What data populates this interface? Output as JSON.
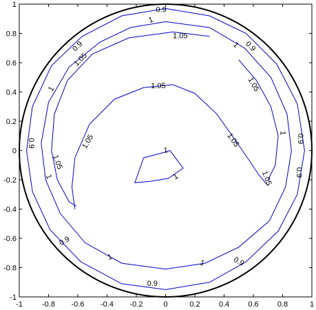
{
  "chart_data": {
    "type": "contour",
    "title": "",
    "xlabel": "",
    "ylabel": "",
    "xlim": [
      -1,
      1
    ],
    "ylim": [
      -1,
      1
    ],
    "grid": false,
    "x_ticks": [
      "-1",
      "-0.8",
      "-0.6",
      "-0.4",
      "-0.2",
      "0",
      "0.2",
      "0.4",
      "0.6",
      "0.8",
      "1"
    ],
    "y_ticks": [
      "1",
      "0.8",
      "0.6",
      "0.4",
      "0.2",
      "0",
      "-0.2",
      "-0.4",
      "-0.6",
      "-0.8",
      "-1"
    ],
    "colors": {
      "contour": "#0000cc",
      "boundary": "#000000",
      "axes": "#000000"
    },
    "boundary": {
      "shape": "circle",
      "center": [
        0,
        0
      ],
      "radius": 1
    },
    "contours": [
      {
        "level": "0.9",
        "points": [
          [
            0,
            0.97
          ],
          [
            0.3,
            0.92
          ],
          [
            0.55,
            0.8
          ],
          [
            0.76,
            0.59
          ],
          [
            0.9,
            0.32
          ],
          [
            0.95,
            0
          ],
          [
            0.9,
            -0.3
          ],
          [
            0.77,
            -0.55
          ],
          [
            0.55,
            -0.76
          ],
          [
            0.3,
            -0.9
          ],
          [
            0,
            -0.95
          ],
          [
            -0.3,
            -0.91
          ],
          [
            -0.58,
            -0.76
          ],
          [
            -0.79,
            -0.54
          ],
          [
            -0.91,
            -0.28
          ],
          [
            -0.95,
            0
          ],
          [
            -0.91,
            0.3
          ],
          [
            -0.78,
            0.58
          ],
          [
            -0.57,
            0.78
          ],
          [
            -0.3,
            0.92
          ],
          [
            0,
            0.97
          ]
        ],
        "labels": [
          {
            "x": -0.03,
            "y": 0.96,
            "angle": 0
          },
          {
            "x": -0.6,
            "y": 0.71,
            "angle": -45
          },
          {
            "x": 0.58,
            "y": 0.71,
            "angle": 45
          },
          {
            "x": -0.92,
            "y": 0.05,
            "angle": 90
          },
          {
            "x": 0.92,
            "y": 0.08,
            "angle": 90
          },
          {
            "x": 0.91,
            "y": -0.15,
            "angle": 90
          },
          {
            "x": -0.69,
            "y": -0.62,
            "angle": -30
          },
          {
            "x": 0.5,
            "y": -0.76,
            "angle": 30
          },
          {
            "x": -0.09,
            "y": -0.91,
            "angle": 0
          }
        ]
      },
      {
        "level": "1",
        "points": [
          [
            0,
            0.88
          ],
          [
            0.3,
            0.84
          ],
          [
            0.54,
            0.7
          ],
          [
            0.72,
            0.5
          ],
          [
            0.83,
            0.25
          ],
          [
            0.86,
            0
          ],
          [
            0.82,
            -0.25
          ],
          [
            0.71,
            -0.48
          ],
          [
            0.5,
            -0.66
          ],
          [
            0.27,
            -0.77
          ],
          [
            0,
            -0.81
          ],
          [
            -0.3,
            -0.77
          ],
          [
            -0.55,
            -0.63
          ],
          [
            -0.72,
            -0.43
          ],
          [
            -0.82,
            -0.2
          ],
          [
            -0.85,
            0.05
          ],
          [
            -0.8,
            0.33
          ],
          [
            -0.66,
            0.57
          ],
          [
            -0.45,
            0.74
          ],
          [
            -0.24,
            0.84
          ],
          [
            0,
            0.88
          ]
        ],
        "labels": [
          {
            "x": -0.1,
            "y": 0.89,
            "angle": -20
          },
          {
            "x": -0.78,
            "y": 0.42,
            "angle": -60
          },
          {
            "x": 0.48,
            "y": 0.72,
            "angle": 45
          },
          {
            "x": 0.8,
            "y": 0.12,
            "angle": 90
          },
          {
            "x": -0.8,
            "y": -0.18,
            "angle": 70
          },
          {
            "x": -0.38,
            "y": -0.73,
            "angle": -20
          },
          {
            "x": 0.25,
            "y": -0.77,
            "angle": 20
          }
        ]
      },
      {
        "level": "1.05",
        "points": [
          [
            0.3,
            0.78
          ],
          [
            0.05,
            0.81
          ],
          [
            -0.25,
            0.77
          ],
          [
            -0.5,
            0.66
          ],
          [
            -0.67,
            0.48
          ],
          [
            -0.76,
            0.25
          ],
          [
            -0.78,
            0
          ],
          [
            -0.74,
            -0.2
          ],
          [
            -0.66,
            -0.35
          ],
          [
            -0.61,
            -0.38
          ]
        ],
        "labels": [
          {
            "x": 0.1,
            "y": 0.78,
            "angle": 0
          },
          {
            "x": -0.58,
            "y": 0.62,
            "angle": -45
          },
          {
            "x": -0.74,
            "y": -0.08,
            "angle": 70
          }
        ]
      },
      {
        "level": "1.05",
        "points": [
          [
            0.5,
            0.62
          ],
          [
            0.62,
            0.48
          ],
          [
            0.72,
            0.3
          ],
          [
            0.77,
            0.1
          ],
          [
            0.75,
            -0.1
          ],
          [
            0.7,
            -0.2
          ]
        ],
        "labels": [
          {
            "x": 0.6,
            "y": 0.45,
            "angle": 60
          }
        ]
      },
      {
        "level": "1.05",
        "points": [
          [
            -0.62,
            -0.4
          ],
          [
            -0.64,
            -0.25
          ],
          [
            -0.62,
            -0.05
          ],
          [
            -0.52,
            0.18
          ],
          [
            -0.35,
            0.35
          ],
          [
            -0.15,
            0.43
          ],
          [
            0.05,
            0.45
          ],
          [
            0.2,
            0.39
          ],
          [
            0.35,
            0.25
          ],
          [
            0.47,
            0.08
          ],
          [
            0.58,
            -0.08
          ],
          [
            0.64,
            -0.17
          ],
          [
            0.7,
            -0.24
          ]
        ],
        "labels": [
          {
            "x": -0.05,
            "y": 0.44,
            "angle": 0
          },
          {
            "x": -0.53,
            "y": 0.06,
            "angle": -60
          },
          {
            "x": 0.46,
            "y": 0.07,
            "angle": 55
          },
          {
            "x": 0.69,
            "y": -0.19,
            "angle": 70
          }
        ]
      },
      {
        "level": "1",
        "points": [
          [
            -0.15,
            -0.05
          ],
          [
            0,
            -0.01
          ],
          [
            0.03,
            0
          ],
          [
            0.12,
            -0.12
          ],
          [
            0.02,
            -0.19
          ],
          [
            -0.1,
            -0.21
          ],
          [
            -0.21,
            -0.22
          ],
          [
            -0.15,
            -0.05
          ]
        ],
        "labels": [
          {
            "x": 0.0,
            "y": 0.0,
            "angle": 0
          },
          {
            "x": 0.07,
            "y": -0.18,
            "angle": -30
          }
        ]
      }
    ]
  }
}
